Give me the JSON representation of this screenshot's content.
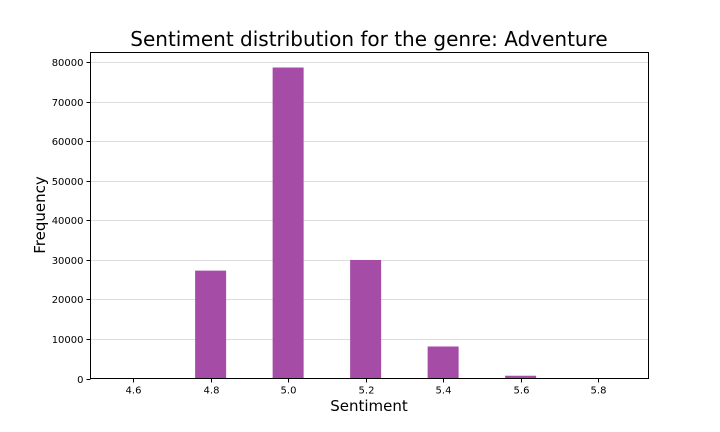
{
  "chart_data": {
    "type": "bar",
    "title": "Sentiment distribution for the genre: Adventure",
    "xlabel": "Sentiment",
    "ylabel": "Frequency",
    "x": [
      4.8,
      5.0,
      5.2,
      5.4,
      5.6
    ],
    "values": [
      27300,
      78700,
      30000,
      8100,
      700
    ],
    "bar_width": 0.08,
    "xlim": [
      4.49,
      5.93
    ],
    "ylim": [
      0,
      82500
    ],
    "xticks": [
      4.6,
      4.8,
      5.0,
      5.2,
      5.4,
      5.6,
      5.8
    ],
    "xtick_labels": [
      "4.6",
      "4.8",
      "5.0",
      "5.2",
      "5.4",
      "5.6",
      "5.8"
    ],
    "yticks": [
      0,
      10000,
      20000,
      30000,
      40000,
      50000,
      60000,
      70000,
      80000
    ],
    "ytick_labels": [
      "0",
      "10000",
      "20000",
      "30000",
      "40000",
      "50000",
      "60000",
      "70000",
      "80000"
    ],
    "grid": "horizontal",
    "bar_color": "#a54ca7",
    "legend": "none"
  }
}
